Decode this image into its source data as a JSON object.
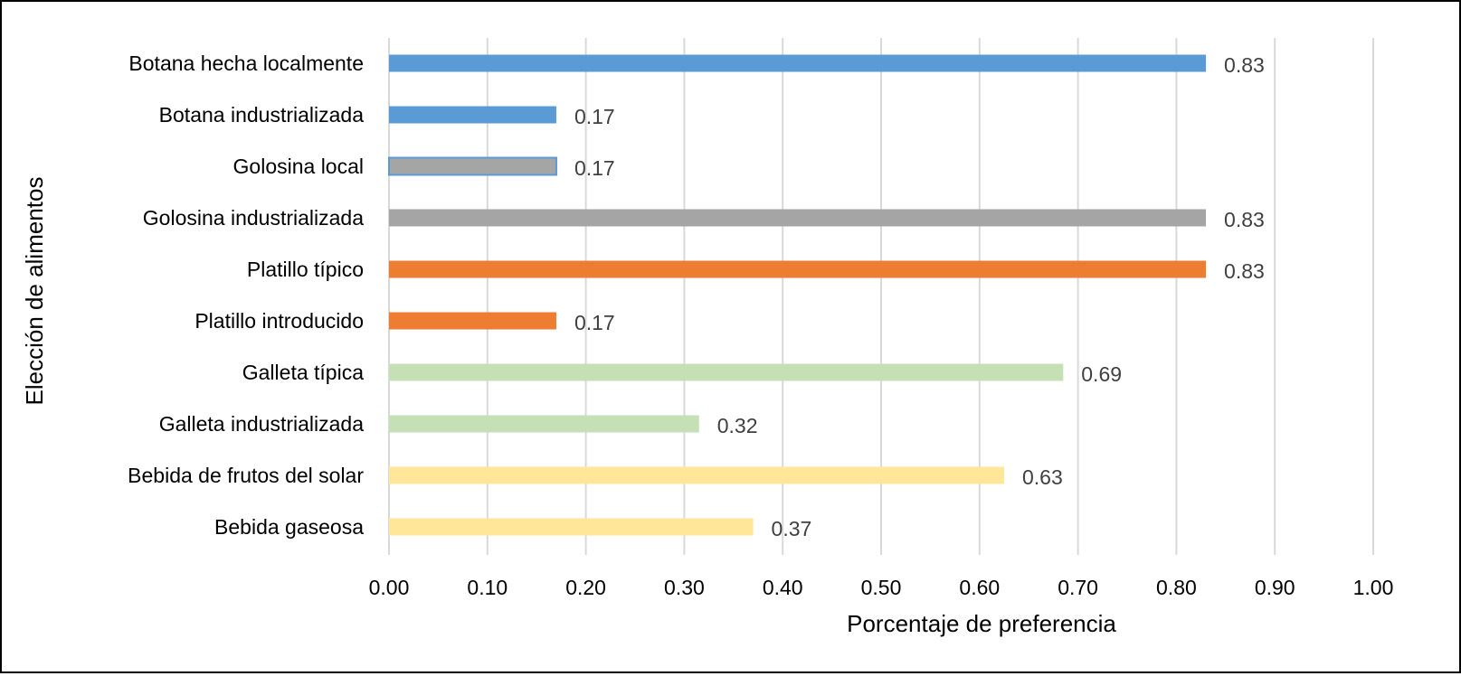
{
  "chart_data": {
    "type": "bar",
    "orientation": "horizontal",
    "title": "",
    "xlabel": "Porcentaje de preferencia",
    "ylabel": "Elección de alimentos",
    "xlim": [
      0,
      1
    ],
    "x_ticks": [
      "0.00",
      "0.10",
      "0.20",
      "0.30",
      "0.40",
      "0.50",
      "0.60",
      "0.70",
      "0.80",
      "0.90",
      "1.00"
    ],
    "grid": "vertical",
    "bars": [
      {
        "category": "Botana hecha localmente",
        "value": 0.83,
        "label": "0.83",
        "color": "#5b9bd5"
      },
      {
        "category": "Botana industrializada",
        "value": 0.17,
        "label": "0.17",
        "color": "#5b9bd5"
      },
      {
        "category": "Golosina local",
        "value": 0.17,
        "label": "0.17",
        "color": "#a5a5a5",
        "outline": "#5b9bd5"
      },
      {
        "category": "Golosina industrializada",
        "value": 0.83,
        "label": "0.83",
        "color": "#a5a5a5"
      },
      {
        "category": "Platillo típico",
        "value": 0.83,
        "label": "0.83",
        "color": "#ed7d31"
      },
      {
        "category": "Platillo introducido",
        "value": 0.17,
        "label": "0.17",
        "color": "#ed7d31"
      },
      {
        "category": "Galleta típica",
        "value": 0.685,
        "label": "0.69",
        "color": "#c5e0b4"
      },
      {
        "category": "Galleta industrializada",
        "value": 0.315,
        "label": "0.32",
        "color": "#c5e0b4"
      },
      {
        "category": "Bebida de frutos del solar",
        "value": 0.625,
        "label": "0.63",
        "color": "#ffe699"
      },
      {
        "category": "Bebida gaseosa",
        "value": 0.37,
        "label": "0.37",
        "color": "#ffe699"
      }
    ],
    "colors": {
      "gridline": "#d9d9d9"
    }
  }
}
